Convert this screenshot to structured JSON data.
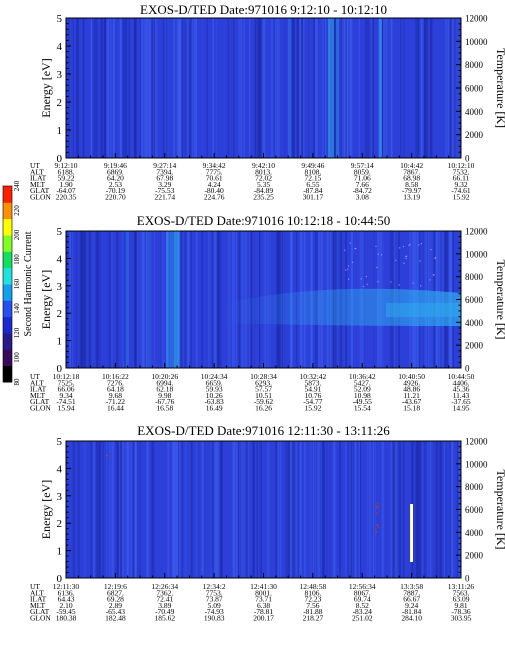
{
  "colorbar": {
    "label": "Second Harmonic Current",
    "ticks": [
      "80",
      "100",
      "120",
      "140",
      "160",
      "180",
      "200",
      "220",
      "240"
    ],
    "colors": [
      "#000000",
      "#3a0a5a",
      "#2a1a8a",
      "#1a2ad0",
      "#2850f0",
      "#10a0f0",
      "#20e0e0",
      "#10e060",
      "#80ff20",
      "#ffff00",
      "#ff9000",
      "#ff2000"
    ]
  },
  "palette": {
    "background": "#2c3fd8",
    "band_light": "#3d5ff0",
    "band_dark": "#1c2aa8",
    "cyan": "#2fb0f0",
    "white": "#ffffff"
  },
  "chart_data": [
    {
      "type": "heatmap",
      "title": "EXOS-D/TED   Date:971016   9:12:10 - 10:12:10",
      "ylabel": "Energy [eV]",
      "y2label": "Temperature [K]",
      "ylim": [
        0,
        5
      ],
      "y_ticks": [
        "0",
        "1",
        "2",
        "3",
        "4",
        "5"
      ],
      "y2lim": [
        0,
        12000
      ],
      "y2_ticks": [
        "0",
        "2000",
        "4000",
        "6000",
        "8000",
        "10000",
        "12000"
      ],
      "row_labels": [
        "UT",
        "ALT",
        "ILAT",
        "MLT",
        "GLAT",
        "GLON"
      ],
      "columns": [
        [
          "9:12:10",
          "6188.",
          "59.22",
          "1.90",
          "-64.07",
          "220.35"
        ],
        [
          "9:19:46",
          "6869.",
          "64.20",
          "2.53",
          "-70.19",
          "220.70"
        ],
        [
          "9:27:14",
          "7394.",
          "67.98",
          "3.29",
          "-75.53",
          "221.74"
        ],
        [
          "9:34:42",
          "7775.",
          "70.61",
          "4.24",
          "-80.40",
          "224.76"
        ],
        [
          "9:42:10",
          "8013.",
          "72.02",
          "5.35",
          "-84.89",
          "235.25"
        ],
        [
          "9:49:46",
          "8108.",
          "72.15",
          "6.55",
          "-87.84",
          "301.17"
        ],
        [
          "9:57:14",
          "8059.",
          "71.06",
          "7.66",
          "-84.72",
          "3.08"
        ],
        [
          "10:4:42",
          "7867.",
          "68.98",
          "8.58",
          "-79.97",
          "13.19"
        ],
        [
          "10:12:10",
          "7532.",
          "66.11",
          "9.32",
          "-74.61",
          "15.92"
        ]
      ]
    },
    {
      "type": "heatmap",
      "title": "EXOS-D/TED   Date:971016   10:12:18 - 10:44:50",
      "ylabel": "Energy [eV]",
      "y2label": "Temperature [K]",
      "ylim": [
        0,
        5
      ],
      "y_ticks": [
        "0",
        "1",
        "2",
        "3",
        "4",
        "5"
      ],
      "y2lim": [
        0,
        12000
      ],
      "y2_ticks": [
        "0",
        "2000",
        "4000",
        "6000",
        "8000",
        "10000",
        "12000"
      ],
      "row_labels": [
        "UT",
        "ALT",
        "ILAT",
        "MLT",
        "GLAT",
        "GLON"
      ],
      "columns": [
        [
          "10:12:18",
          "7525.",
          "66.06",
          "9.34",
          "-74.51",
          "15.94"
        ],
        [
          "10:16:22",
          "7276.",
          "64.18",
          "9.68",
          "-71.22",
          "16.44"
        ],
        [
          "10:20:26",
          "6994.",
          "62.18",
          "9.98",
          "-67.76",
          "16.58"
        ],
        [
          "10:24:34",
          "6659.",
          "59.93",
          "10.26",
          "-63.83",
          "16.49"
        ],
        [
          "10:28:34",
          "6293.",
          "57.57",
          "10.51",
          "-59.62",
          "16.26"
        ],
        [
          "10:32:42",
          "5873.",
          "54.91",
          "10.76",
          "-54.77",
          "15.92"
        ],
        [
          "10:36:42",
          "5427.",
          "52.09",
          "10.98",
          "-49.55",
          "15.54"
        ],
        [
          "10:40:50",
          "4926.",
          "48.86",
          "11.21",
          "-43.67",
          "15.18"
        ],
        [
          "10:44:50",
          "4406.",
          "45.36",
          "11.43",
          "-37.65",
          "14.95"
        ]
      ]
    },
    {
      "type": "heatmap",
      "title": "EXOS-D/TED   Date:971016   12:11:30 - 13:11:26",
      "ylabel": "Energy [eV]",
      "y2label": "Temperature [K]",
      "ylim": [
        0,
        5
      ],
      "y_ticks": [
        "0",
        "1",
        "2",
        "3",
        "4",
        "5"
      ],
      "y2lim": [
        0,
        12000
      ],
      "y2_ticks": [
        "0",
        "2000",
        "4000",
        "6000",
        "8000",
        "10000",
        "12000"
      ],
      "row_labels": [
        "UT",
        "ALT",
        "ILAT",
        "MLT",
        "GLAT",
        "GLON"
      ],
      "columns": [
        [
          "12:11:30",
          "6136.",
          "64.43",
          "2.10",
          "-59.45",
          "180.38"
        ],
        [
          "12:19:6",
          "6827.",
          "69.28",
          "2.89",
          "-65.43",
          "182.48"
        ],
        [
          "12:26:34",
          "7362.",
          "72.41",
          "3.89",
          "-70.49",
          "185.62"
        ],
        [
          "12:34:2",
          "7753.",
          "73.87",
          "5.09",
          "-74.93",
          "190.83"
        ],
        [
          "12:41:30",
          "8001.",
          "73.71",
          "6.38",
          "-78.81",
          "200.17"
        ],
        [
          "12:48:58",
          "8106.",
          "72.23",
          "7.56",
          "-81.88",
          "218.27"
        ],
        [
          "12:56:34",
          "8067.",
          "69.74",
          "8.52",
          "-83.24",
          "251.02"
        ],
        [
          "13:3:58",
          "7887.",
          "66.67",
          "9.24",
          "-81.84",
          "284.10"
        ],
        [
          "13:11:26",
          "7563.",
          "63.09",
          "9.81",
          "-78.36",
          "303.95"
        ]
      ]
    }
  ]
}
